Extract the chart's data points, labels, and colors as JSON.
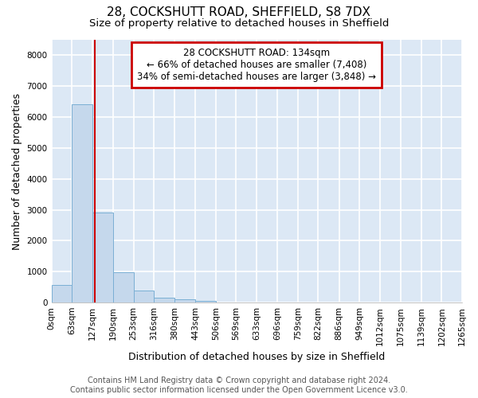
{
  "title": "28, COCKSHUTT ROAD, SHEFFIELD, S8 7DX",
  "subtitle": "Size of property relative to detached houses in Sheffield",
  "xlabel": "Distribution of detached houses by size in Sheffield",
  "ylabel": "Number of detached properties",
  "bar_color": "#c5d8ec",
  "bar_edge_color": "#7aafd4",
  "background_color": "#dce8f5",
  "grid_color": "white",
  "bins": [
    0,
    63,
    127,
    190,
    253,
    316,
    380,
    443,
    506,
    569,
    633,
    696,
    759,
    822,
    886,
    949,
    1012,
    1075,
    1139,
    1202,
    1265
  ],
  "counts": [
    570,
    6420,
    2920,
    980,
    380,
    155,
    110,
    60,
    0,
    0,
    0,
    0,
    0,
    0,
    0,
    0,
    0,
    0,
    0,
    0
  ],
  "tick_labels": [
    "0sqm",
    "63sqm",
    "127sqm",
    "190sqm",
    "253sqm",
    "316sqm",
    "380sqm",
    "443sqm",
    "506sqm",
    "569sqm",
    "633sqm",
    "696sqm",
    "759sqm",
    "822sqm",
    "886sqm",
    "949sqm",
    "1012sqm",
    "1075sqm",
    "1139sqm",
    "1202sqm",
    "1265sqm"
  ],
  "property_size": 134,
  "red_line_color": "#cc0000",
  "annotation_line1": "28 COCKSHUTT ROAD: 134sqm",
  "annotation_line2": "← 66% of detached houses are smaller (7,408)",
  "annotation_line3": "34% of semi-detached houses are larger (3,848) →",
  "annotation_box_color": "#cc0000",
  "ylim": [
    0,
    8500
  ],
  "yticks": [
    0,
    1000,
    2000,
    3000,
    4000,
    5000,
    6000,
    7000,
    8000
  ],
  "footer_text": "Contains HM Land Registry data © Crown copyright and database right 2024.\nContains public sector information licensed under the Open Government Licence v3.0.",
  "title_fontsize": 11,
  "subtitle_fontsize": 9.5,
  "axis_label_fontsize": 9,
  "tick_fontsize": 7.5,
  "annotation_fontsize": 8.5,
  "footer_fontsize": 7
}
